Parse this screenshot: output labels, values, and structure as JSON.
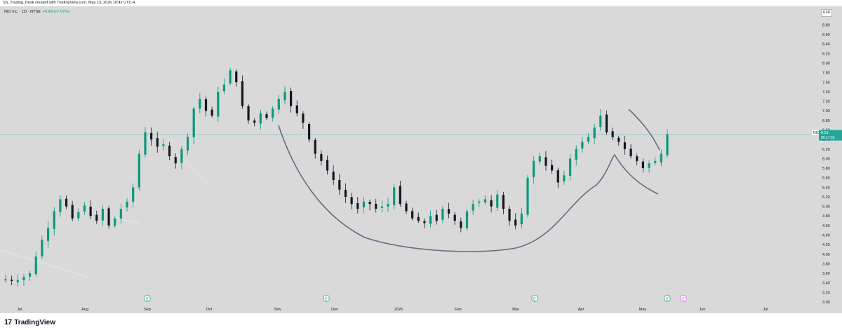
{
  "header": {
    "attribution": "SS_Trading_Desk created with TradingView.com, May 13, 2026 10:42 UTC-4"
  },
  "legend": {
    "symbol": "NIO Inc. · 1D · NYSE",
    "change": "+0.43 (+7.07%)"
  },
  "price_label": {
    "ticker": "NIO",
    "price": "6.51",
    "countdown": "05:17:32"
  },
  "currency": "USD",
  "brand": {
    "name": "TradingView",
    "icon": "tradingview-logo-icon"
  },
  "colors": {
    "up": "#089981",
    "down": "#131722",
    "background": "#d9d9d9",
    "curve": "#6b6885",
    "price_line": "#26a69a",
    "earnings": "#089981",
    "dividend": "#e040fb"
  },
  "event_markers": [
    {
      "label": "E",
      "date": "Sep",
      "type": "earnings"
    },
    {
      "label": "E",
      "date": "Nov",
      "type": "earnings"
    },
    {
      "label": "E",
      "date": "Mar",
      "type": "earnings"
    },
    {
      "label": "E",
      "date": "May",
      "type": "earnings"
    },
    {
      "label": "E",
      "date": "May",
      "type": "dividend"
    }
  ],
  "chart_data": {
    "type": "candlestick",
    "title": "",
    "xlabel": "",
    "ylabel": "",
    "ylim": [
      3.0,
      8.8
    ],
    "y_ticks": [
      "8.80",
      "8.60",
      "8.40",
      "8.20",
      "8.00",
      "7.80",
      "7.60",
      "7.40",
      "7.20",
      "7.00",
      "6.80",
      "6.60",
      "6.40",
      "6.20",
      "6.00",
      "5.80",
      "5.60",
      "5.40",
      "5.20",
      "5.00",
      "4.80",
      "4.60",
      "4.40",
      "4.20",
      "4.00",
      "3.80",
      "3.60",
      "3.40",
      "3.20",
      "3.00"
    ],
    "x_ticks": [
      "Jul",
      "Aug",
      "Sep",
      "Oct",
      "Nov",
      "Dec",
      "2026",
      "Feb",
      "Mar",
      "Apr",
      "May",
      "Jun",
      "Jul"
    ],
    "last_price": 6.51,
    "bars_approx_close": [
      3.48,
      3.44,
      3.46,
      3.52,
      3.6,
      3.95,
      4.3,
      4.55,
      4.9,
      5.15,
      5.0,
      4.75,
      4.88,
      5.02,
      4.8,
      4.7,
      4.95,
      4.6,
      4.75,
      4.95,
      5.1,
      5.4,
      6.1,
      6.55,
      6.4,
      6.25,
      6.3,
      6.05,
      5.9,
      6.2,
      6.45,
      7.05,
      7.25,
      7.0,
      6.9,
      7.4,
      7.55,
      7.85,
      7.6,
      7.1,
      6.8,
      6.75,
      6.95,
      6.85,
      7.05,
      7.25,
      7.4,
      7.1,
      6.95,
      6.75,
      6.4,
      6.1,
      5.95,
      5.75,
      5.55,
      5.35,
      5.2,
      5.05,
      4.95,
      5.1,
      5.05,
      4.95,
      5.0,
      5.05,
      5.4,
      5.05,
      4.9,
      4.75,
      4.7,
      4.65,
      4.8,
      4.7,
      4.95,
      4.85,
      4.7,
      4.55,
      4.9,
      5.05,
      5.1,
      5.15,
      5.0,
      5.25,
      4.95,
      4.7,
      4.6,
      4.85,
      5.6,
      5.95,
      6.05,
      5.85,
      5.75,
      5.5,
      5.65,
      6.0,
      6.2,
      6.35,
      6.45,
      6.65,
      6.9,
      6.55,
      6.45,
      6.35,
      6.2,
      6.05,
      5.95,
      5.8,
      5.9,
      5.95,
      6.1,
      6.51
    ],
    "overlays": [
      {
        "type": "curve",
        "name": ""
      },
      {
        "type": "trendline",
        "name": ""
      }
    ]
  }
}
